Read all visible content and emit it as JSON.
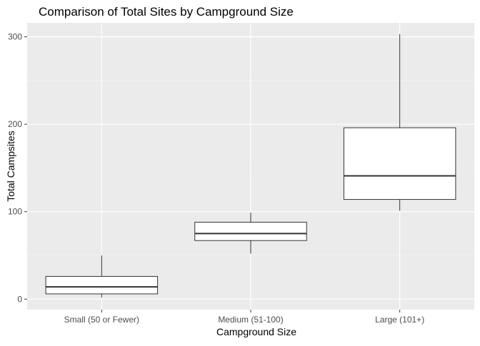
{
  "chart_data": {
    "type": "boxplot",
    "title": "Comparison of Total Sites by Campground Size",
    "xlabel": "Campground Size",
    "ylabel": "Total Campsites",
    "categories": [
      "Small (50 or Fewer)",
      "Medium (51-100)",
      "Large (101+)"
    ],
    "boxes": [
      {
        "category": "Small (50 or Fewer)",
        "min": 2,
        "q1": 6,
        "median": 14,
        "q3": 26,
        "max": 50
      },
      {
        "category": "Medium (51-100)",
        "min": 52,
        "q1": 67,
        "median": 75,
        "q3": 88,
        "max": 99
      },
      {
        "category": "Large (101+)",
        "min": 101,
        "q1": 114,
        "median": 141,
        "q3": 196,
        "max": 303
      }
    ],
    "ylim": [
      -12,
      316
    ],
    "y_ticks": [
      0,
      100,
      200,
      300
    ],
    "y_minor_ticks": [
      50,
      150,
      250
    ],
    "grid": true,
    "legend": "none",
    "colors": {
      "panel_background": "#ebebeb",
      "grid_major": "#ffffff",
      "grid_minor": "#f5f5f5",
      "box_fill": "#ffffff",
      "box_stroke": "#333333",
      "tick_label": "#4d4d4d",
      "title": "#000000"
    }
  }
}
